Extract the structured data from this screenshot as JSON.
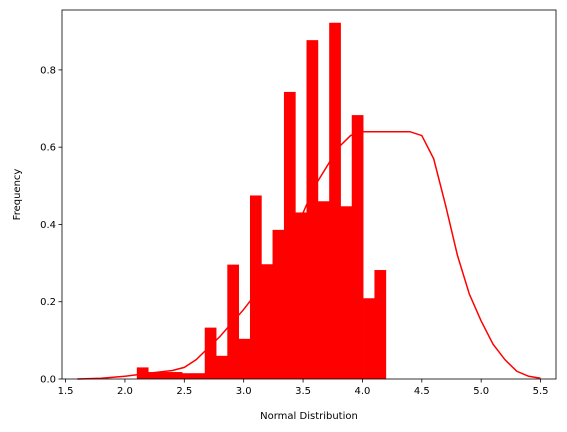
{
  "chart_data": {
    "type": "bar",
    "xlabel": "Normal Distribution",
    "ylabel": "Frequency",
    "xlim": [
      1.47,
      5.63
    ],
    "ylim": [
      0,
      0.955
    ],
    "color": "#ff0000",
    "bin_width": 0.0953,
    "bins": [
      {
        "x": 2.1,
        "value": 0.03
      },
      {
        "x": 2.195,
        "value": 0.018
      },
      {
        "x": 2.291,
        "value": 0.018
      },
      {
        "x": 2.386,
        "value": 0.018
      },
      {
        "x": 2.481,
        "value": 0.015
      },
      {
        "x": 2.576,
        "value": 0.015
      },
      {
        "x": 2.672,
        "value": 0.133
      },
      {
        "x": 2.767,
        "value": 0.06
      },
      {
        "x": 2.862,
        "value": 0.296
      },
      {
        "x": 2.958,
        "value": 0.104
      },
      {
        "x": 3.053,
        "value": 0.475
      },
      {
        "x": 3.148,
        "value": 0.297
      },
      {
        "x": 3.243,
        "value": 0.386
      },
      {
        "x": 3.339,
        "value": 0.743
      },
      {
        "x": 3.434,
        "value": 0.431
      },
      {
        "x": 3.529,
        "value": 0.877
      },
      {
        "x": 3.625,
        "value": 0.46
      },
      {
        "x": 3.72,
        "value": 0.922
      },
      {
        "x": 3.815,
        "value": 0.447
      },
      {
        "x": 3.91,
        "value": 0.683
      },
      {
        "x": 4.006,
        "value": 0.209
      },
      {
        "x": 4.101,
        "value": 0.282
      }
    ],
    "kde": {
      "x": [
        1.6,
        1.8,
        2.0,
        2.2,
        2.4,
        2.5,
        2.6,
        2.8,
        3.0,
        3.2,
        3.4,
        3.5,
        3.6,
        3.8,
        3.9,
        4.0,
        4.1,
        4.2,
        4.3,
        4.4,
        4.5,
        4.6,
        4.7,
        4.8,
        4.9,
        5.0,
        5.1,
        5.2,
        5.3,
        5.4,
        5.5
      ],
      "y": [
        0.0,
        0.002,
        0.007,
        0.015,
        0.022,
        0.03,
        0.05,
        0.11,
        0.18,
        0.26,
        0.37,
        0.43,
        0.5,
        0.6,
        0.63,
        0.64,
        0.64,
        0.64,
        0.64,
        0.64,
        0.63,
        0.57,
        0.45,
        0.32,
        0.22,
        0.15,
        0.09,
        0.05,
        0.02,
        0.007,
        0.002
      ]
    },
    "x_ticks": [
      {
        "value": 1.5,
        "label": "1.5"
      },
      {
        "value": 2.0,
        "label": "2.0"
      },
      {
        "value": 2.5,
        "label": "2.5"
      },
      {
        "value": 3.0,
        "label": "3.0"
      },
      {
        "value": 3.5,
        "label": "3.5"
      },
      {
        "value": 4.0,
        "label": "4.0"
      },
      {
        "value": 4.5,
        "label": "4.5"
      },
      {
        "value": 5.0,
        "label": "5.0"
      },
      {
        "value": 5.5,
        "label": "5.5"
      }
    ],
    "y_ticks": [
      {
        "value": 0.0,
        "label": "0.0"
      },
      {
        "value": 0.2,
        "label": "0.2"
      },
      {
        "value": 0.4,
        "label": "0.4"
      },
      {
        "value": 0.6,
        "label": "0.6"
      },
      {
        "value": 0.8,
        "label": "0.8"
      }
    ],
    "grid": false,
    "legend": "none"
  }
}
